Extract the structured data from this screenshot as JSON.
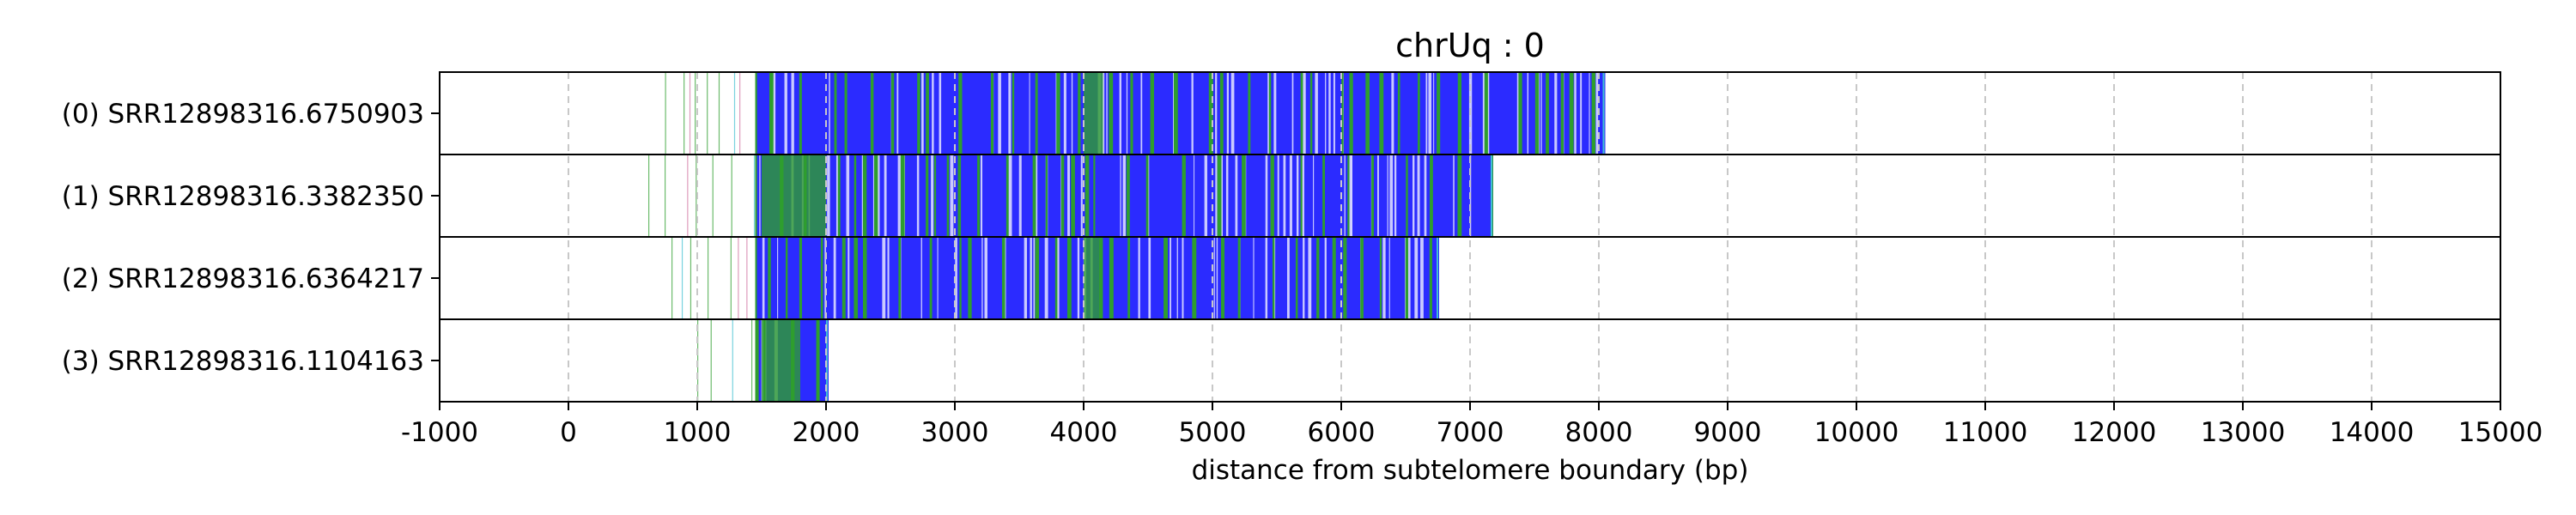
{
  "chart_data": {
    "type": "read-track",
    "title": "chrUq : 0",
    "xlabel": "distance from subtelomere boundary (bp)",
    "ylabel": "",
    "xlim": [
      -1000,
      15000
    ],
    "xticks": [
      -1000,
      0,
      1000,
      2000,
      3000,
      4000,
      5000,
      6000,
      7000,
      8000,
      9000,
      10000,
      11000,
      12000,
      13000,
      14000,
      15000
    ],
    "xtick_labels": [
      "-1000",
      "0",
      "1000",
      "2000",
      "3000",
      "4000",
      "5000",
      "6000",
      "7000",
      "8000",
      "9000",
      "10000",
      "11000",
      "12000",
      "13000",
      "14000",
      "15000"
    ],
    "grid": "vertical dashed",
    "legend": "none",
    "colors": {
      "telomere": "#2b2bff",
      "variant": "#2e9e2e",
      "other": "#d070a0",
      "cyan": "#40c0d0",
      "grid": "#c8c8c8",
      "frame": "#000000"
    },
    "reads": [
      {
        "label": "(0) SRR12898316.6750903",
        "start": 750,
        "dense_start": 1450,
        "end": 8050,
        "green_band": [
          4000,
          4150
        ]
      },
      {
        "label": "(1) SRR12898316.3382350",
        "start": 620,
        "dense_start": 1450,
        "end": 7180,
        "green_band": [
          1500,
          2000
        ]
      },
      {
        "label": "(2) SRR12898316.6364217",
        "start": 800,
        "dense_start": 1450,
        "end": 6760,
        "green_band": [
          4000,
          4150
        ]
      },
      {
        "label": "(3) SRR12898316.1104163",
        "start": 1000,
        "dense_start": 1450,
        "end": 2020,
        "green_band": [
          1500,
          1800
        ]
      }
    ]
  }
}
